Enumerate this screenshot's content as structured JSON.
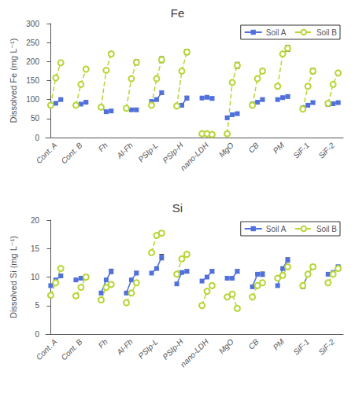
{
  "chart_data": [
    {
      "type": "line",
      "title": "Fe",
      "ylabel": "Dissolved Fe (mg L⁻¹)",
      "categories": [
        "Cont. A",
        "Cont. B",
        "Fh",
        "Al-Fh",
        "PSIp-L",
        "PSIp-H",
        "nano-LDH",
        "MgO",
        "CB",
        "PM",
        "SiF-1",
        "SiF-2"
      ],
      "series": [
        {
          "name": "Soil A",
          "marker": "square",
          "line_style": "solid",
          "values": [
            [
              85,
              90,
              100
            ],
            [
              85,
              88,
              93
            ],
            [
              80,
              68,
              70
            ],
            [
              77,
              73,
              73
            ],
            [
              95,
              100,
              118
            ],
            [
              83,
              85,
              104
            ],
            [
              104,
              106,
              103
            ],
            [
              52,
              60,
              63
            ],
            [
              88,
              93,
              100
            ],
            [
              100,
              105,
              108
            ],
            [
              78,
              85,
              92
            ],
            [
              87,
              89,
              92
            ]
          ],
          "errors": [
            3,
            3,
            4,
            4,
            5,
            5,
            4,
            3,
            4,
            4,
            4,
            3
          ]
        },
        {
          "name": "Soil B",
          "marker": "circle",
          "line_style": "dashed",
          "values": [
            [
              85,
              157,
              197
            ],
            [
              85,
              140,
              180
            ],
            [
              80,
              177,
              220
            ],
            [
              77,
              155,
              198
            ],
            [
              85,
              155,
              205
            ],
            [
              83,
              175,
              225
            ],
            [
              10,
              10,
              8
            ],
            [
              10,
              145,
              190
            ],
            [
              85,
              155,
              175
            ],
            [
              135,
              220,
              235
            ],
            [
              75,
              135,
              175
            ],
            [
              90,
              140,
              170
            ]
          ],
          "errors": [
            5,
            5,
            6,
            7,
            8,
            7,
            2,
            8,
            6,
            8,
            7,
            5
          ]
        }
      ],
      "ylim": [
        0,
        300
      ],
      "yticks": [
        0,
        50,
        100,
        150,
        200,
        250,
        300
      ],
      "grid": false,
      "legend": "upper right"
    },
    {
      "type": "line",
      "title": "Si",
      "ylabel": "Dissolved Si (mg L⁻¹)",
      "categories": [
        "Cont. A",
        "Cont. B",
        "Fh",
        "Al-Fh",
        "PSIp-L",
        "PSIp-H",
        "nano-LDH",
        "MgO",
        "CB",
        "PM",
        "SiF-1",
        "SiF-2"
      ],
      "series": [
        {
          "name": "Soil A",
          "marker": "square",
          "line_style": "solid",
          "values": [
            [
              8.5,
              9.5,
              10.2
            ],
            [
              9.5,
              9.8,
              10.0
            ],
            [
              7.2,
              9.5,
              11.0
            ],
            [
              7.2,
              9.5,
              10.7
            ],
            [
              10.7,
              11.5,
              13.5
            ],
            [
              8.8,
              10.8,
              11.0
            ],
            [
              9.3,
              10.0,
              11.0
            ],
            [
              9.8,
              9.8,
              11.0
            ],
            [
              8.3,
              10.5,
              10.5
            ],
            [
              8.5,
              11.5,
              13.0
            ],
            [
              8.3,
              10.5,
              11.8
            ],
            [
              10.5,
              10.8,
              11.8
            ]
          ],
          "errors": [
            0.3,
            0.3,
            0.4,
            0.3,
            0.5,
            0.3,
            0.3,
            0.3,
            0.4,
            0.4,
            0.3,
            0.3
          ]
        },
        {
          "name": "Soil B",
          "marker": "circle",
          "line_style": "dashed",
          "values": [
            [
              6.8,
              9.0,
              11.5
            ],
            [
              6.7,
              8.2,
              10.0
            ],
            [
              6.0,
              8.2,
              8.7
            ],
            [
              5.5,
              7.2,
              9.0
            ],
            [
              14.3,
              17.3,
              17.7
            ],
            [
              10.5,
              13.2,
              14.0
            ],
            [
              5.0,
              7.5,
              8.5
            ],
            [
              6.5,
              7.0,
              4.5
            ],
            [
              6.5,
              8.5,
              9.0
            ],
            [
              9.8,
              10.3,
              11.8
            ],
            [
              8.5,
              10.5,
              11.8
            ],
            [
              9.0,
              10.5,
              11.5
            ]
          ],
          "errors": [
            0.3,
            0.3,
            0.3,
            0.3,
            0.4,
            0.3,
            0.3,
            0.4,
            0.3,
            0.3,
            0.3,
            0.3
          ]
        }
      ],
      "ylim": [
        0,
        20
      ],
      "yticks": [
        0,
        5,
        10,
        15,
        20
      ],
      "grid": false,
      "legend": "upper right"
    }
  ]
}
